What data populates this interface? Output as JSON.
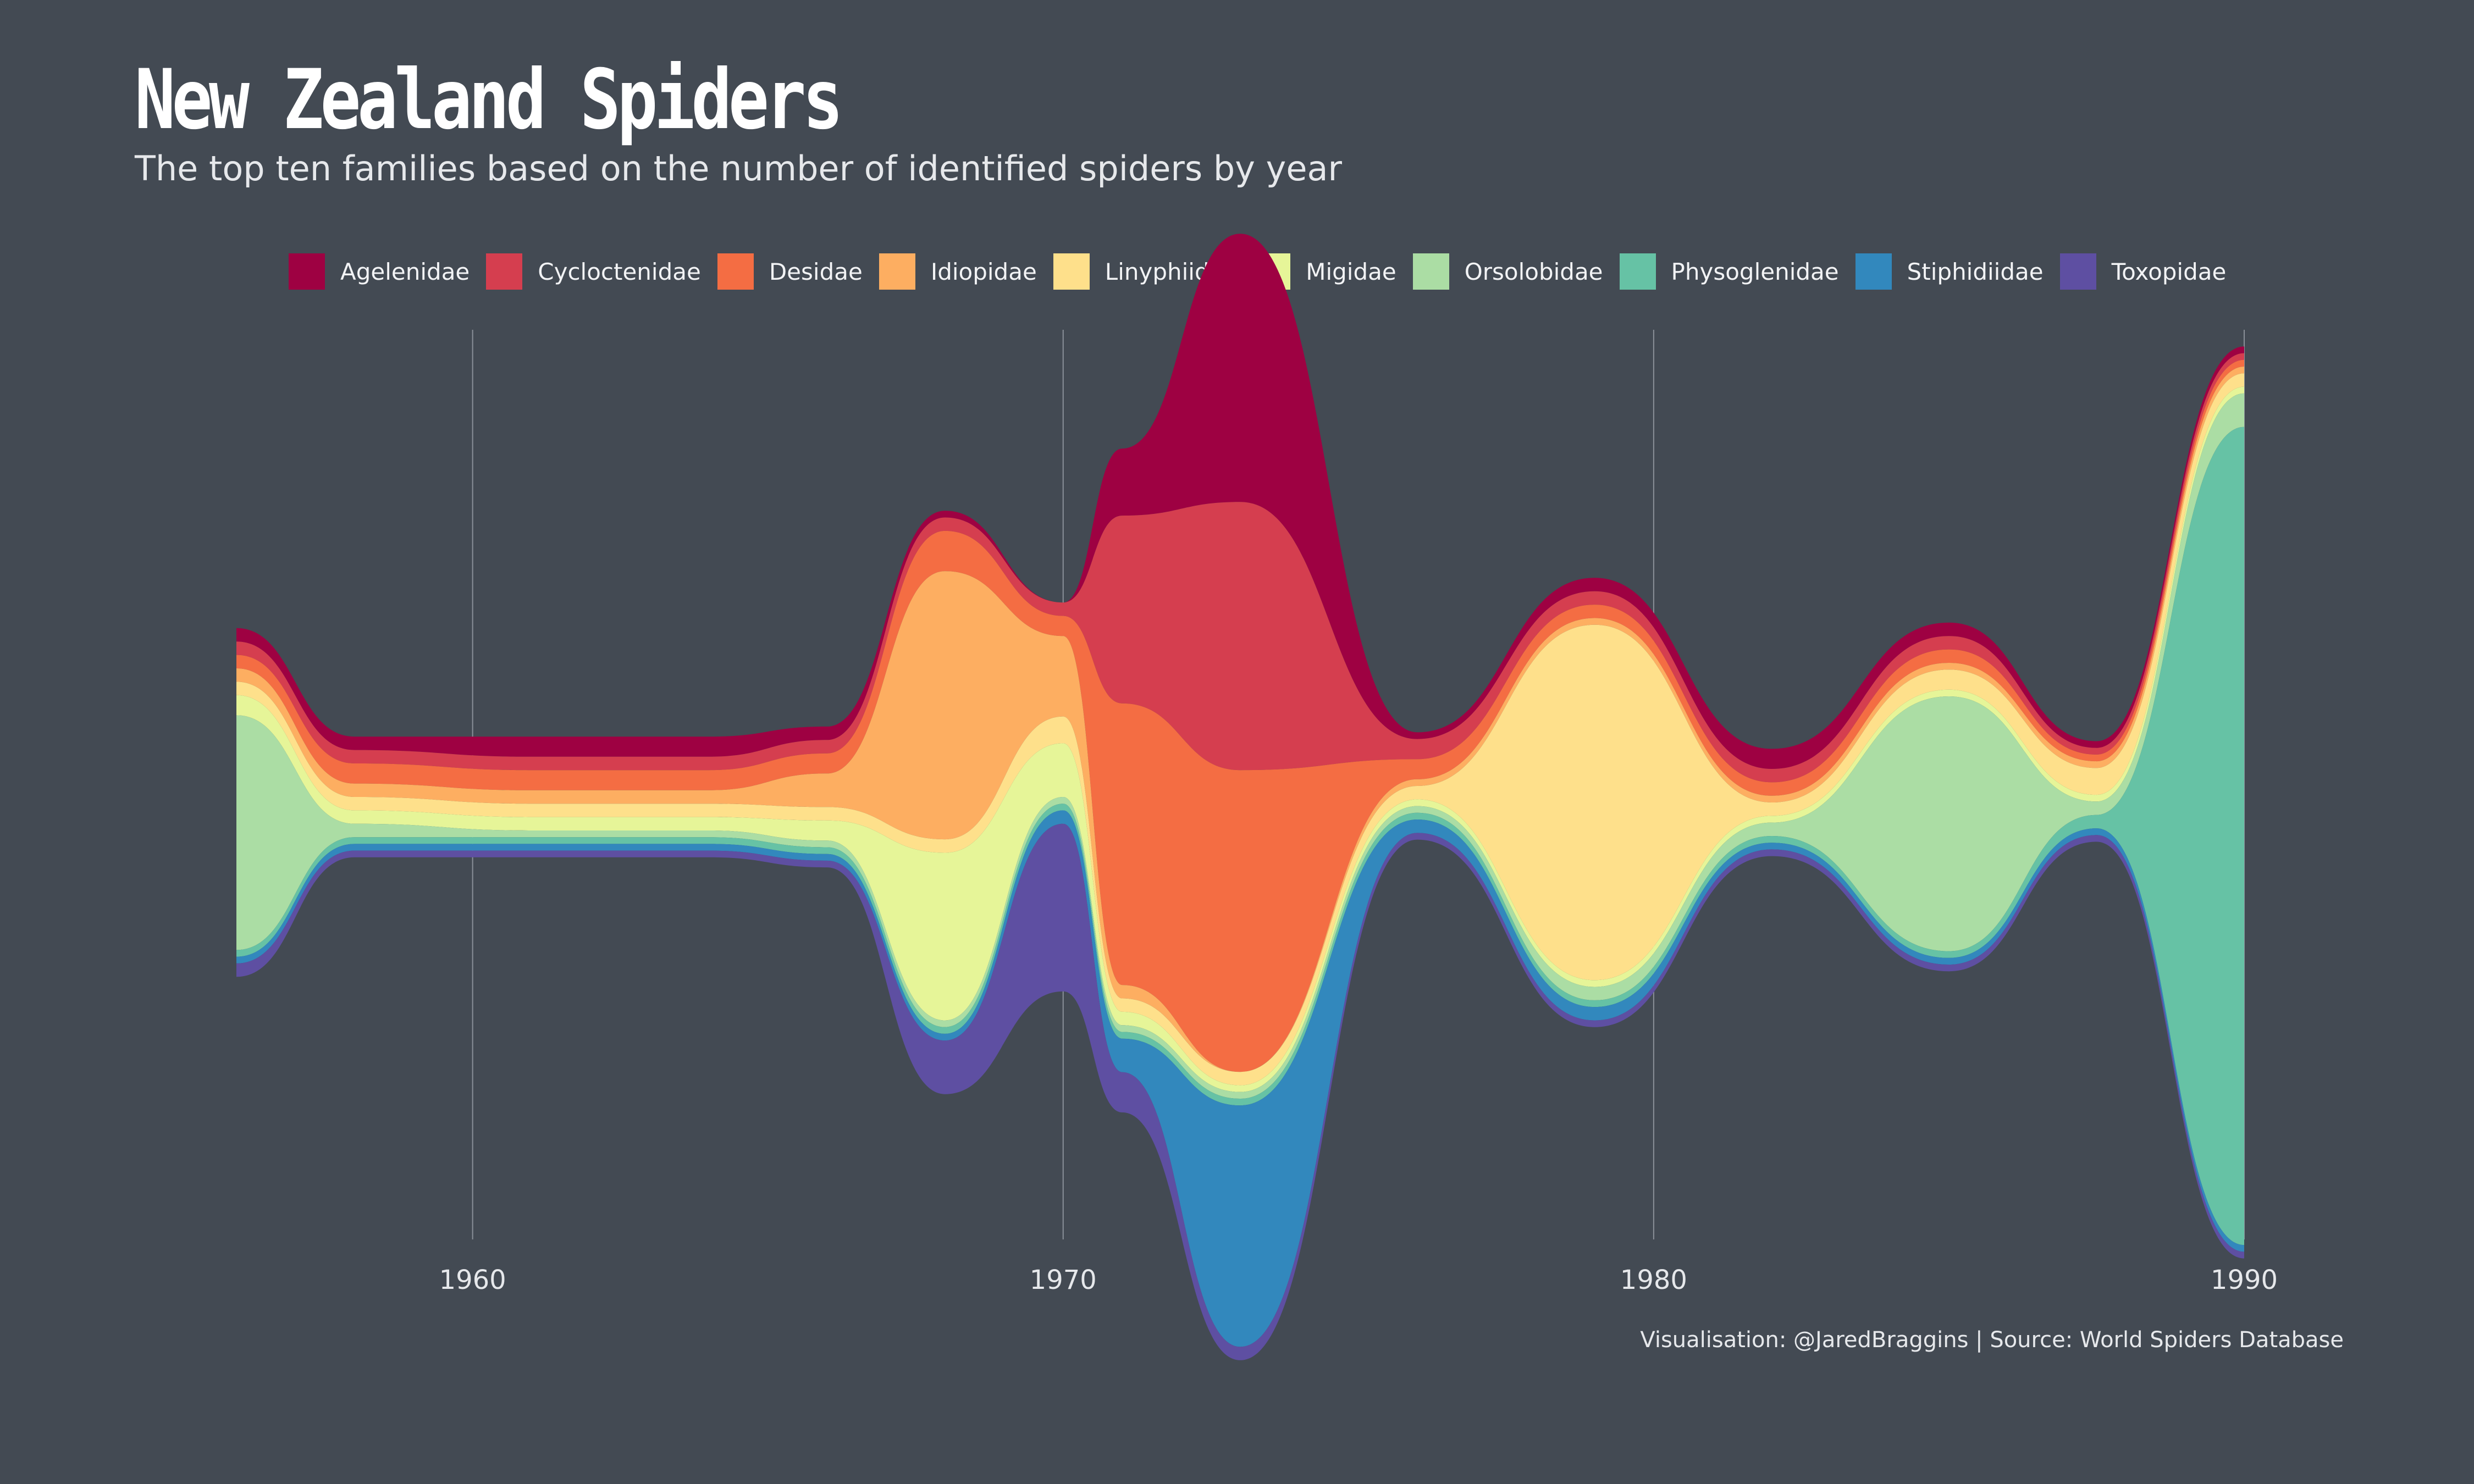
{
  "title": "New Zealand Spiders",
  "subtitle": "The top ten families based on the number of identified spiders by year",
  "caption": "Visualisation: @JaredBraggins | Source: World Spiders Database",
  "chart_data": {
    "type": "area",
    "subtype": "streamgraph",
    "title": "New Zealand Spiders",
    "subtitle": "The top ten families based on the number of identified spiders by year",
    "xlabel": "",
    "ylabel": "",
    "xlim": [
      1956,
      1990
    ],
    "xticks": [
      1960,
      1970,
      1980,
      1990
    ],
    "grid": "vertical lines at x ticks",
    "legend_position": "top",
    "x": [
      1956,
      1958,
      1961,
      1964,
      1966,
      1968,
      1970,
      1971,
      1973,
      1976,
      1979,
      1982,
      1985,
      1987.5,
      1990
    ],
    "series": [
      {
        "name": "Agelenidae",
        "color": "#9e0142",
        "values": [
          2,
          2,
          3,
          3,
          2,
          1,
          0,
          10,
          40,
          1,
          2,
          3,
          2,
          1,
          1
        ]
      },
      {
        "name": "Cycloctenidae",
        "color": "#d53e4f",
        "values": [
          2,
          2,
          2,
          2,
          2,
          2,
          2,
          28,
          40,
          3,
          2,
          2,
          2,
          1,
          1
        ]
      },
      {
        "name": "Desidae",
        "color": "#f46d43",
        "values": [
          2,
          3,
          3,
          3,
          3,
          6,
          3,
          42,
          45,
          3,
          2,
          2,
          2,
          1,
          1
        ]
      },
      {
        "name": "Idiopidae",
        "color": "#fdae61",
        "values": [
          2,
          2,
          2,
          2,
          5,
          40,
          12,
          2,
          0,
          1,
          1,
          1,
          1,
          1,
          1
        ]
      },
      {
        "name": "Linyphiidae",
        "color": "#fee08b",
        "values": [
          2,
          2,
          2,
          2,
          2,
          2,
          4,
          2,
          2,
          2,
          53,
          2,
          3,
          4,
          2
        ]
      },
      {
        "name": "Migidae",
        "color": "#e6f598",
        "values": [
          3,
          2,
          2,
          2,
          3,
          25,
          8,
          2,
          1,
          1,
          1,
          1,
          1,
          1,
          1
        ]
      },
      {
        "name": "Orsolobidae",
        "color": "#abdda4",
        "values": [
          35,
          2,
          1,
          1,
          1,
          1,
          1,
          1,
          1,
          1,
          2,
          2,
          38,
          2,
          5
        ]
      },
      {
        "name": "Physoglenidae",
        "color": "#66c2a5",
        "values": [
          1,
          1,
          1,
          1,
          1,
          1,
          1,
          1,
          1,
          1,
          1,
          1,
          1,
          2,
          122
        ]
      },
      {
        "name": "Stiphidiidae",
        "color": "#3288bd",
        "values": [
          1,
          1,
          1,
          1,
          1,
          1,
          2,
          5,
          36,
          2,
          2,
          1,
          1,
          1,
          1
        ]
      },
      {
        "name": "Toxopidae",
        "color": "#5e4fa2",
        "values": [
          2,
          1,
          1,
          1,
          1,
          8,
          25,
          6,
          2,
          1,
          1,
          1,
          1,
          1,
          1
        ]
      }
    ]
  }
}
